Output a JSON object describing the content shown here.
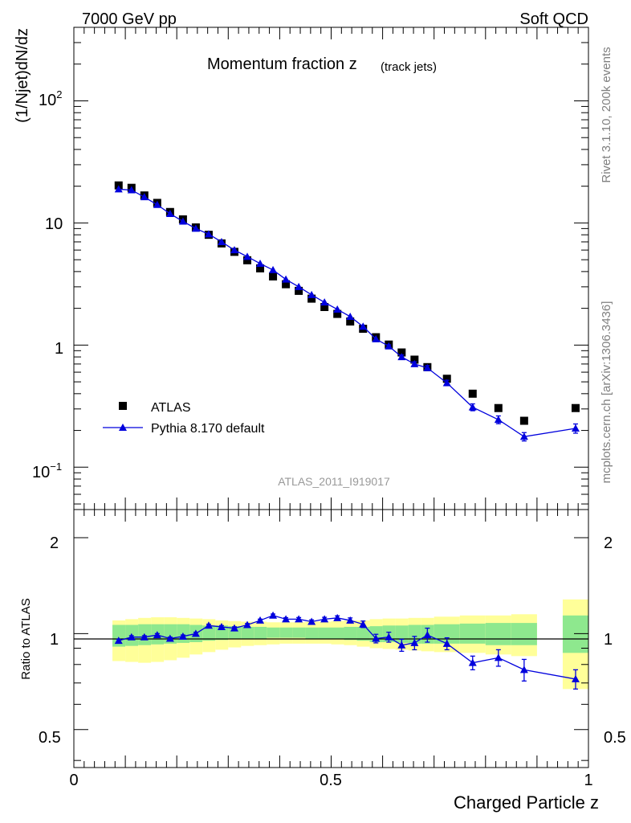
{
  "header": {
    "left": "7000 GeV pp",
    "right": "Soft QCD"
  },
  "side_labels": {
    "rivet": "Rivet 3.1.10,  200k events",
    "mcplots": "mcplots.cern.ch [arXiv:1306.3436]"
  },
  "chart_data": [
    {
      "type": "scatter",
      "panel": "main",
      "title_main": "Momentum fraction z",
      "title_sub": "(track jets)",
      "xlabel": "",
      "ylabel": "(1/Njet)dN/dz",
      "yscale": "log",
      "xlim": [
        0,
        1
      ],
      "ylim": [
        0.045,
        400
      ],
      "ytick_labels": {
        "e2_base": "10",
        "e2_exp": "2",
        "ten": "10",
        "one": "1",
        "em1_base": "10",
        "em1_exp": "−1"
      },
      "watermark": "ATLAS_2011_I919017",
      "legend": {
        "position": "lower-left",
        "entries": [
          "ATLAS",
          "Pythia 8.170 default"
        ]
      },
      "series": [
        {
          "name": "ATLAS",
          "marker": "square",
          "color": "#000000",
          "x": [
            0.087,
            0.112,
            0.137,
            0.162,
            0.187,
            0.212,
            0.237,
            0.262,
            0.287,
            0.312,
            0.337,
            0.362,
            0.387,
            0.412,
            0.437,
            0.462,
            0.487,
            0.512,
            0.537,
            0.562,
            0.587,
            0.612,
            0.637,
            0.662,
            0.687,
            0.725,
            0.775,
            0.825,
            0.875,
            0.975
          ],
          "y": [
            20.3,
            19.4,
            16.8,
            14.6,
            12.3,
            10.7,
            9.2,
            8.0,
            6.8,
            5.8,
            4.95,
            4.25,
            3.65,
            3.15,
            2.78,
            2.4,
            2.05,
            1.8,
            1.56,
            1.36,
            1.16,
            1.01,
            0.87,
            0.76,
            0.66,
            0.53,
            0.4,
            0.305,
            0.24,
            0.305
          ]
        },
        {
          "name": "Pythia 8.170 default",
          "marker": "triangle",
          "color": "#0000dd",
          "x": [
            0.087,
            0.112,
            0.137,
            0.162,
            0.187,
            0.212,
            0.237,
            0.262,
            0.287,
            0.312,
            0.337,
            0.362,
            0.387,
            0.412,
            0.437,
            0.462,
            0.487,
            0.512,
            0.537,
            0.562,
            0.587,
            0.612,
            0.637,
            0.662,
            0.687,
            0.725,
            0.775,
            0.825,
            0.875,
            0.975
          ],
          "y": [
            18.9,
            18.6,
            16.3,
            14.1,
            11.9,
            10.3,
            9.0,
            8.1,
            7.0,
            6.0,
            5.3,
            4.65,
            4.12,
            3.45,
            3.0,
            2.58,
            2.24,
            1.96,
            1.71,
            1.42,
            1.12,
            0.98,
            0.8,
            0.7,
            0.65,
            0.49,
            0.31,
            0.245,
            0.178,
            0.208
          ],
          "err": [
            0.4,
            0.4,
            0.35,
            0.3,
            0.25,
            0.2,
            0.18,
            0.16,
            0.14,
            0.12,
            0.1,
            0.09,
            0.08,
            0.07,
            0.06,
            0.05,
            0.045,
            0.04,
            0.035,
            0.03,
            0.025,
            0.025,
            0.03,
            0.03,
            0.03,
            0.025,
            0.02,
            0.018,
            0.014,
            0.018
          ]
        }
      ]
    },
    {
      "type": "line",
      "panel": "ratio",
      "xlabel": "Charged Particle z",
      "ylabel": "Ratio to ATLAS",
      "yscale": "log",
      "xlim": [
        0,
        1
      ],
      "ylim": [
        0.38,
        2.45
      ],
      "yticks": [
        0.5,
        1,
        2
      ],
      "ytick_labels": [
        "0.5",
        "1",
        "2"
      ],
      "xticks": [
        0,
        0.5,
        1
      ],
      "xtick_labels": [
        "0",
        "0.5",
        "1"
      ],
      "bands": {
        "bin_edges": [
          [
            0.075,
            0.1
          ],
          [
            0.1,
            0.125
          ],
          [
            0.125,
            0.15
          ],
          [
            0.15,
            0.175
          ],
          [
            0.175,
            0.2
          ],
          [
            0.2,
            0.225
          ],
          [
            0.225,
            0.25
          ],
          [
            0.25,
            0.275
          ],
          [
            0.275,
            0.3
          ],
          [
            0.3,
            0.325
          ],
          [
            0.325,
            0.35
          ],
          [
            0.35,
            0.375
          ],
          [
            0.375,
            0.4
          ],
          [
            0.4,
            0.425
          ],
          [
            0.425,
            0.45
          ],
          [
            0.45,
            0.475
          ],
          [
            0.475,
            0.5
          ],
          [
            0.5,
            0.525
          ],
          [
            0.525,
            0.55
          ],
          [
            0.55,
            0.575
          ],
          [
            0.575,
            0.6
          ],
          [
            0.6,
            0.625
          ],
          [
            0.625,
            0.65
          ],
          [
            0.65,
            0.675
          ],
          [
            0.675,
            0.7
          ],
          [
            0.7,
            0.75
          ],
          [
            0.75,
            0.8
          ],
          [
            0.8,
            0.85
          ],
          [
            0.85,
            0.9
          ],
          [
            0.95,
            1.0
          ]
        ],
        "inner_color": "#8ee88e",
        "outer_color": "#ffff99",
        "inner_lo": [
          0.91,
          0.915,
          0.92,
          0.925,
          0.93,
          0.935,
          0.94,
          0.95,
          0.955,
          0.96,
          0.965,
          0.965,
          0.97,
          0.97,
          0.97,
          0.965,
          0.965,
          0.96,
          0.955,
          0.95,
          0.94,
          0.94,
          0.935,
          0.93,
          0.93,
          0.93,
          0.93,
          0.92,
          0.92,
          0.87
        ],
        "inner_hi": [
          1.065,
          1.065,
          1.07,
          1.07,
          1.07,
          1.07,
          1.065,
          1.06,
          1.06,
          1.055,
          1.05,
          1.05,
          1.045,
          1.045,
          1.045,
          1.045,
          1.045,
          1.045,
          1.05,
          1.05,
          1.055,
          1.06,
          1.06,
          1.065,
          1.065,
          1.07,
          1.075,
          1.08,
          1.08,
          1.14
        ],
        "outer_lo": [
          0.82,
          0.815,
          0.81,
          0.815,
          0.825,
          0.84,
          0.86,
          0.875,
          0.89,
          0.905,
          0.915,
          0.92,
          0.925,
          0.93,
          0.93,
          0.93,
          0.93,
          0.925,
          0.92,
          0.91,
          0.9,
          0.895,
          0.89,
          0.885,
          0.88,
          0.875,
          0.87,
          0.86,
          0.85,
          0.67
        ],
        "outer_hi": [
          1.1,
          1.11,
          1.12,
          1.125,
          1.125,
          1.12,
          1.115,
          1.11,
          1.1,
          1.095,
          1.09,
          1.09,
          1.085,
          1.085,
          1.085,
          1.09,
          1.09,
          1.095,
          1.1,
          1.1,
          1.11,
          1.115,
          1.115,
          1.12,
          1.12,
          1.13,
          1.14,
          1.14,
          1.15,
          1.28
        ]
      },
      "series": [
        {
          "name": "Pythia 8.170 default",
          "marker": "triangle",
          "color": "#0000dd",
          "x": [
            0.087,
            0.112,
            0.137,
            0.162,
            0.187,
            0.212,
            0.237,
            0.262,
            0.287,
            0.312,
            0.337,
            0.362,
            0.387,
            0.412,
            0.437,
            0.462,
            0.487,
            0.512,
            0.537,
            0.562,
            0.587,
            0.612,
            0.637,
            0.662,
            0.687,
            0.725,
            0.775,
            0.825,
            0.875,
            0.975
          ],
          "y": [
            0.95,
            0.975,
            0.975,
            0.99,
            0.965,
            0.98,
            1.0,
            1.06,
            1.05,
            1.04,
            1.065,
            1.1,
            1.14,
            1.11,
            1.11,
            1.09,
            1.11,
            1.12,
            1.1,
            1.07,
            0.965,
            0.975,
            0.92,
            0.935,
            0.99,
            0.93,
            0.81,
            0.84,
            0.77,
            0.72
          ],
          "err_lo": [
            0.01,
            0.01,
            0.01,
            0.01,
            0.01,
            0.01,
            0.01,
            0.01,
            0.01,
            0.01,
            0.01,
            0.01,
            0.012,
            0.012,
            0.013,
            0.014,
            0.015,
            0.017,
            0.02,
            0.025,
            0.03,
            0.035,
            0.04,
            0.045,
            0.05,
            0.04,
            0.04,
            0.05,
            0.06,
            0.05
          ],
          "err_hi": [
            0.01,
            0.01,
            0.01,
            0.01,
            0.01,
            0.01,
            0.01,
            0.01,
            0.01,
            0.01,
            0.01,
            0.01,
            0.012,
            0.012,
            0.013,
            0.014,
            0.015,
            0.017,
            0.02,
            0.025,
            0.03,
            0.035,
            0.04,
            0.045,
            0.05,
            0.04,
            0.04,
            0.05,
            0.06,
            0.05
          ]
        }
      ]
    }
  ]
}
